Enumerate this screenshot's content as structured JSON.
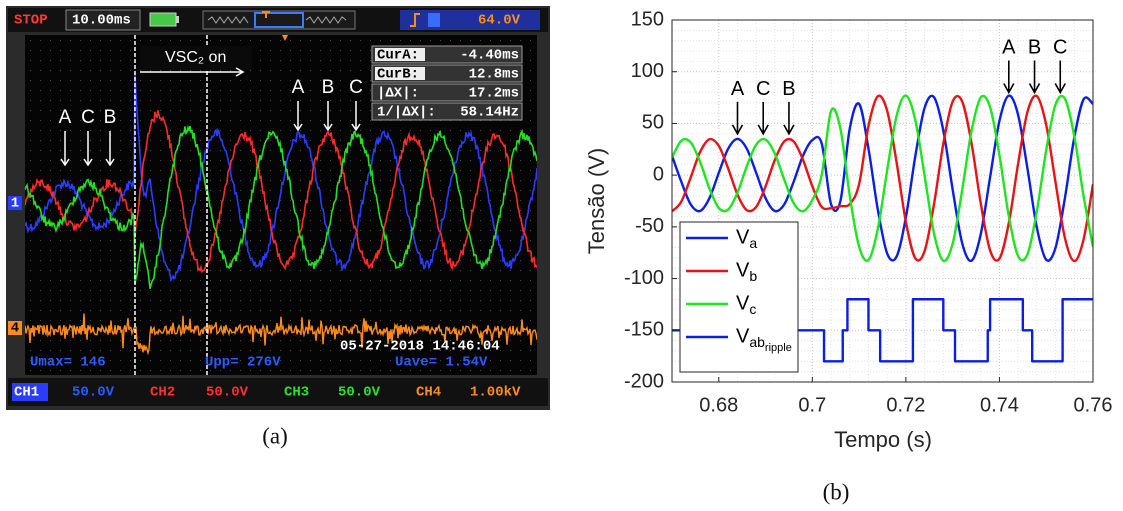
{
  "oscilloscope": {
    "status": "STOP",
    "timebase": "10.00ms",
    "trigger_level": "64.0V",
    "event": "VSC₂ on",
    "cursors": [
      {
        "label": "CurA:",
        "value": "-4.40ms"
      },
      {
        "label": "CurB:",
        "value": "12.8ms"
      },
      {
        "label": "|ΔX|:",
        "value": "17.2ms"
      },
      {
        "label": "1/|ΔX|:",
        "value": "58.14Hz"
      }
    ],
    "labels_before": [
      "A",
      "C",
      "B"
    ],
    "labels_after": [
      "A",
      "B",
      "C"
    ],
    "markers": [
      "1",
      "4"
    ],
    "measurements": [
      "Umax= 146",
      "Upp= 276V",
      "Uave= 1.54V"
    ],
    "timestamp": "05-27-2018 14:46:04",
    "channels": [
      {
        "name": "CH1",
        "scale": "50.0V"
      },
      {
        "name": "CH2",
        "scale": "50.0V"
      },
      {
        "name": "CH3",
        "scale": "50.0V"
      },
      {
        "name": "CH4",
        "scale": "1.00kV"
      }
    ]
  },
  "captions": [
    "(a)",
    "(b)"
  ],
  "chart_data": {
    "type": "line",
    "xlabel": "Tempo (s)",
    "ylabel": "Tensão (V)",
    "xlim": [
      0.67,
      0.76
    ],
    "xticks": [
      0.68,
      0.7,
      0.72,
      0.74,
      0.76
    ],
    "ylim": [
      -200,
      150
    ],
    "yticks": [
      -200,
      -150,
      -100,
      -50,
      0,
      50,
      100,
      150
    ],
    "grid": true,
    "legend": "lower left",
    "x": [
      0.67,
      0.672,
      0.674,
      0.676,
      0.678,
      0.68,
      0.682,
      0.684,
      0.686,
      0.688,
      0.69,
      0.692,
      0.694,
      0.696,
      0.698,
      0.7,
      0.702,
      0.704,
      0.706,
      0.708,
      0.71,
      0.712,
      0.714,
      0.716,
      0.718,
      0.72,
      0.722,
      0.724,
      0.726,
      0.728,
      0.73,
      0.732,
      0.734,
      0.736,
      0.738,
      0.74,
      0.742,
      0.744,
      0.746,
      0.748,
      0.75,
      0.752,
      0.754,
      0.756,
      0.758,
      0.76
    ],
    "series": [
      {
        "name": "Va",
        "color": "#0a1ee6",
        "values": [
          18.8,
          -6.5,
          -28.3,
          -34.7,
          -22.3,
          2.2,
          25.5,
          35,
          25.5,
          2.2,
          -22.3,
          -34.7,
          -28.3,
          -6.5,
          18.8,
          33.9,
          30.7,
          -28,
          -25,
          45,
          68.9,
          25.6,
          -33.4,
          -75.8,
          -78.8,
          -40.7,
          17.9,
          65.1,
          75.4,
          43.2,
          -14.0,
          -65.2,
          -82.8,
          -57.1,
          -2.0,
          52.5,
          76.9,
          58.0,
          6.0,
          -50.8,
          -81.8,
          -70.0,
          -22.0,
          36.4,
          73.4,
          68.9
        ]
      },
      {
        "name": "Vb",
        "color": "#e61414",
        "values": [
          -35,
          -25.5,
          -2.2,
          22.3,
          34.7,
          28.3,
          6.5,
          -18.8,
          -33.9,
          -30.7,
          -10.8,
          14.9,
          32.6,
          32.6,
          14.9,
          -10.8,
          -30.7,
          -32,
          -30,
          -28,
          -8.7,
          47.5,
          76.3,
          62.1,
          12.7,
          -45.2,
          -80.3,
          -73.4,
          -28.4,
          30.4,
          71.2,
          71.6,
          31.7,
          -27.1,
          -72.8,
          -80.7,
          -46.4,
          11.3,
          61.3,
          76.4,
          48.5,
          -7.3,
          -60.8,
          -83.0,
          -61.8,
          -8.7
        ]
      },
      {
        "name": "Vc",
        "color": "#1ee61e",
        "values": [
          16.9,
          33.3,
          31.7,
          12.9,
          -12.9,
          -31.7,
          -33.3,
          -16.9,
          8.7,
          29.5,
          34.4,
          20.6,
          -4.4,
          -27.0,
          -34.9,
          -24.0,
          0,
          62,
          45,
          -20,
          -69.2,
          -82.0,
          -52.0,
          4.7,
          57.1,
          76.9,
          53.5,
          -0.6,
          -56.0,
          -82.7,
          -66.1,
          -15.4,
          42.1,
          75.1,
          65.8,
          19.2,
          -39.5,
          -78.3,
          -76.4,
          -34.7,
          24.2,
          68.4,
          73.8,
          37.6,
          -20.6,
          -69.2
        ]
      },
      {
        "name": "Vabripple",
        "color": "#0a1ee6",
        "x": [
          0.67,
          0.7025,
          0.7025,
          0.7065,
          0.7065,
          0.7075,
          0.7075,
          0.712,
          0.712,
          0.7145,
          0.7145,
          0.7215,
          0.7215,
          0.728,
          0.728,
          0.7305,
          0.7305,
          0.7375,
          0.7375,
          0.738,
          0.738,
          0.745,
          0.745,
          0.747,
          0.747,
          0.7535,
          0.7535,
          0.76
        ],
        "values": [
          -150,
          -150,
          -180,
          -180,
          -150,
          -150,
          -120,
          -120,
          -150,
          -150,
          -180,
          -180,
          -120,
          -120,
          -150,
          -150,
          -180,
          -180,
          -150,
          -150,
          -120,
          -120,
          -150,
          -150,
          -180,
          -180,
          -120,
          -120
        ]
      }
    ],
    "annotations": [
      {
        "text": "A",
        "x": 0.684,
        "y": 38
      },
      {
        "text": "C",
        "x": 0.6895,
        "y": 38
      },
      {
        "text": "B",
        "x": 0.695,
        "y": 38
      },
      {
        "text": "A",
        "x": 0.742,
        "y": 78
      },
      {
        "text": "B",
        "x": 0.7475,
        "y": 78
      },
      {
        "text": "C",
        "x": 0.753,
        "y": 78
      }
    ]
  }
}
